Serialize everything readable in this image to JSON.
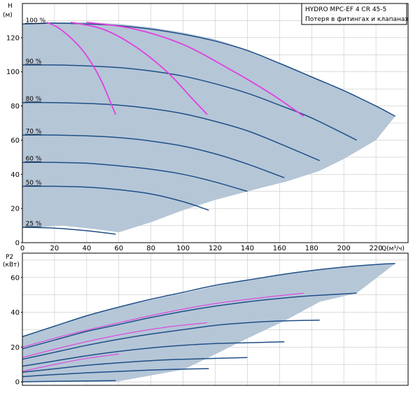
{
  "colors": {
    "envelope": "#b5c6d7",
    "speed_curve": "#1f4f86",
    "loss_curve": "#e040e0",
    "grid": "#c8c8c8",
    "frame": "#000000",
    "background": "#ffffff"
  },
  "chart_data": [
    {
      "type": "line",
      "title": "HYDRO MPC-EF 4 CR 45-5",
      "legend": [
        "HYDRO MPC-EF 4 CR 45-5",
        "Потеря в фитингах и клапанах"
      ],
      "legend_placement": "top-right",
      "ylabel": "H",
      "yunit": "(м)",
      "xlabel": "Q(м³/ч)",
      "xlim": [
        0,
        240
      ],
      "ylim": [
        0,
        140
      ],
      "xticks": [
        0,
        20,
        40,
        60,
        80,
        100,
        120,
        140,
        160,
        180,
        200,
        220
      ],
      "yticks": [
        0,
        20,
        40,
        60,
        80,
        100,
        120
      ],
      "grid": true,
      "envelope": [
        [
          0,
          12
        ],
        [
          0,
          128
        ],
        [
          15,
          129
        ],
        [
          40,
          129
        ],
        [
          60,
          128
        ],
        [
          80,
          126
        ],
        [
          100,
          123
        ],
        [
          120,
          119
        ],
        [
          140,
          113
        ],
        [
          160,
          105
        ],
        [
          180,
          97
        ],
        [
          200,
          89
        ],
        [
          220,
          80
        ],
        [
          232,
          74
        ],
        [
          220,
          60
        ],
        [
          200,
          49
        ],
        [
          185,
          42
        ],
        [
          165,
          36
        ],
        [
          140,
          30
        ],
        [
          120,
          25
        ],
        [
          100,
          19
        ],
        [
          80,
          12
        ],
        [
          60,
          6
        ],
        [
          45,
          8
        ],
        [
          25,
          10
        ],
        [
          10,
          9
        ],
        [
          0,
          9
        ]
      ],
      "series": [
        {
          "name": "100 %",
          "x": [
            0,
            20,
            40,
            60,
            80,
            100,
            120,
            140,
            160,
            180,
            200,
            220,
            232
          ],
          "y": [
            128,
            128.5,
            128,
            127,
            125,
            122,
            118,
            112.5,
            105,
            97,
            89,
            80,
            74
          ]
        },
        {
          "name": "90 %",
          "x": [
            0,
            20,
            40,
            60,
            80,
            100,
            120,
            140,
            160,
            180,
            208
          ],
          "y": [
            104,
            104,
            103.5,
            102.5,
            100.5,
            97.5,
            93,
            87.5,
            80.5,
            73,
            60
          ]
        },
        {
          "name": "80 %",
          "x": [
            0,
            20,
            40,
            60,
            80,
            100,
            120,
            140,
            160,
            185
          ],
          "y": [
            82,
            82,
            81.5,
            80.5,
            78.5,
            75.5,
            71,
            65.5,
            58,
            48
          ]
        },
        {
          "name": "70 %",
          "x": [
            0,
            20,
            40,
            60,
            80,
            100,
            120,
            140,
            163
          ],
          "y": [
            63,
            63,
            62.5,
            61.5,
            59.5,
            56.5,
            52,
            46,
            38
          ]
        },
        {
          "name": "60 %",
          "x": [
            0,
            20,
            40,
            60,
            80,
            100,
            120,
            140
          ],
          "y": [
            47,
            47,
            46.5,
            45,
            43,
            40,
            35.5,
            30
          ]
        },
        {
          "name": "50 %",
          "x": [
            0,
            20,
            40,
            60,
            80,
            100,
            116
          ],
          "y": [
            33,
            33,
            32.5,
            31,
            28.5,
            24,
            19
          ]
        },
        {
          "name": "25 %",
          "x": [
            0,
            20,
            40,
            58
          ],
          "y": [
            9,
            8.5,
            7,
            5
          ]
        }
      ],
      "loss_curves": [
        {
          "x": [
            15,
            22,
            30,
            38,
            45,
            50,
            54,
            58
          ],
          "y": [
            129,
            126,
            120,
            112,
            102,
            93,
            84,
            75
          ]
        },
        {
          "x": [
            30,
            50,
            70,
            90,
            105,
            115
          ],
          "y": [
            129,
            125,
            115,
            100,
            85,
            75
          ]
        },
        {
          "x": [
            40,
            70,
            100,
            130,
            155,
            175
          ],
          "y": [
            129,
            125,
            116,
            101,
            87,
            74
          ]
        }
      ]
    },
    {
      "type": "line",
      "ylabel": "P2",
      "yunit": "(кВт)",
      "xlim": [
        0,
        240
      ],
      "ylim": [
        -2,
        74
      ],
      "yticks": [
        0,
        20,
        40,
        60
      ],
      "grid": true,
      "envelope": [
        [
          0,
          26
        ],
        [
          20,
          32
        ],
        [
          40,
          38
        ],
        [
          60,
          43
        ],
        [
          80,
          47
        ],
        [
          100,
          51
        ],
        [
          120,
          55
        ],
        [
          140,
          58.5
        ],
        [
          160,
          61.5
        ],
        [
          180,
          64
        ],
        [
          200,
          66
        ],
        [
          220,
          67.5
        ],
        [
          232,
          68
        ],
        [
          232,
          68
        ],
        [
          208,
          51
        ],
        [
          185,
          46
        ],
        [
          163,
          35
        ],
        [
          140,
          25
        ],
        [
          116,
          14
        ],
        [
          100,
          7
        ],
        [
          58,
          0
        ],
        [
          0,
          0
        ]
      ],
      "series": [
        {
          "name": "100 %",
          "x": [
            0,
            20,
            40,
            60,
            80,
            100,
            120,
            140,
            160,
            180,
            200,
            220,
            232
          ],
          "y": [
            26,
            32,
            38,
            43,
            47.5,
            51.5,
            55.5,
            58.5,
            61.5,
            64,
            66,
            67.5,
            68
          ]
        },
        {
          "name": "90 %",
          "x": [
            0,
            20,
            40,
            60,
            80,
            100,
            120,
            140,
            160,
            180,
            208
          ],
          "y": [
            19,
            24,
            29,
            33,
            37,
            40.5,
            43.5,
            46,
            48,
            49.5,
            51
          ]
        },
        {
          "name": "80 %",
          "x": [
            0,
            20,
            40,
            60,
            80,
            100,
            120,
            140,
            160,
            185
          ],
          "y": [
            13,
            17,
            21,
            24.5,
            27.5,
            30,
            32.5,
            34,
            35,
            35.5
          ]
        },
        {
          "name": "70 %",
          "x": [
            0,
            20,
            40,
            60,
            80,
            100,
            120,
            140,
            163
          ],
          "y": [
            9,
            12,
            15,
            17.5,
            19.5,
            21,
            22,
            22.5,
            23
          ]
        },
        {
          "name": "60 %",
          "x": [
            0,
            20,
            40,
            60,
            80,
            100,
            120,
            140
          ],
          "y": [
            5.5,
            7.5,
            9.5,
            11,
            12.2,
            13,
            13.5,
            14
          ]
        },
        {
          "name": "50 %",
          "x": [
            0,
            20,
            40,
            60,
            80,
            100,
            116
          ],
          "y": [
            3,
            4.2,
            5.2,
            6,
            6.8,
            7.3,
            7.6
          ]
        },
        {
          "name": "25 %",
          "x": [
            0,
            20,
            40,
            58
          ],
          "y": [
            0,
            0.3,
            0.5,
            0.7
          ]
        }
      ],
      "loss_curves": [
        {
          "x": [
            0,
            20,
            40,
            60
          ],
          "y": [
            6,
            10,
            13.5,
            16
          ]
        },
        {
          "x": [
            0,
            30,
            60,
            90,
            115
          ],
          "y": [
            14,
            21,
            27,
            31.5,
            34
          ]
        },
        {
          "x": [
            0,
            30,
            60,
            90,
            120,
            150,
            175
          ],
          "y": [
            20,
            27.5,
            34,
            40,
            45,
            48.5,
            51
          ]
        }
      ]
    }
  ]
}
